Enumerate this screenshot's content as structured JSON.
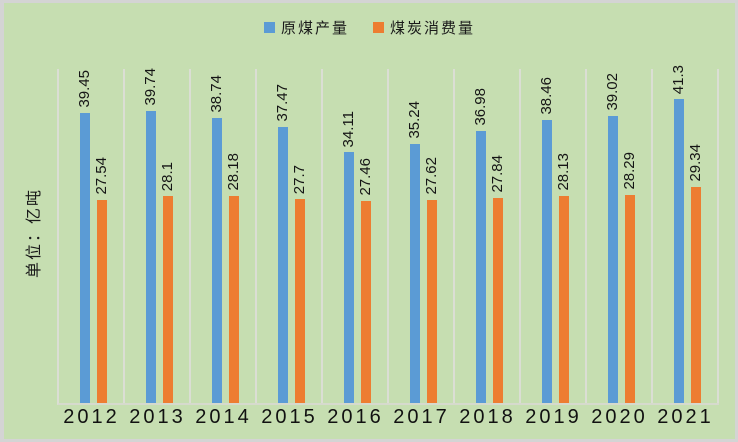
{
  "colors": {
    "background": "#C6DEB1",
    "gridline": "#DBDED4",
    "axis_line": "#D6DACD",
    "frame_border": "#D4D4D4",
    "text": "#1A1A1A",
    "series_blue": "#5B9BD5",
    "series_orange": "#ED7D31"
  },
  "y_axis": {
    "unit_label": "单位：亿吨"
  },
  "chart_data": {
    "type": "bar",
    "title": "",
    "legend_position": "top-center",
    "grid": "vertical-category-boundaries",
    "data_labels": "rotated-90-above-bars",
    "ylim": [
      0,
      45
    ],
    "categories": [
      "2012",
      "2013",
      "2014",
      "2015",
      "2016",
      "2017",
      "2018",
      "2019",
      "2020",
      "2021"
    ],
    "series": [
      {
        "name": "原煤产量",
        "color": "#5B9BD5",
        "values": [
          39.45,
          39.74,
          38.74,
          37.47,
          34.11,
          35.24,
          36.98,
          38.46,
          39.02,
          41.3
        ]
      },
      {
        "name": "煤炭消费量",
        "color": "#ED7D31",
        "values": [
          27.54,
          28.1,
          28.18,
          27.7,
          27.46,
          27.62,
          27.84,
          28.13,
          28.29,
          29.34
        ]
      }
    ]
  }
}
